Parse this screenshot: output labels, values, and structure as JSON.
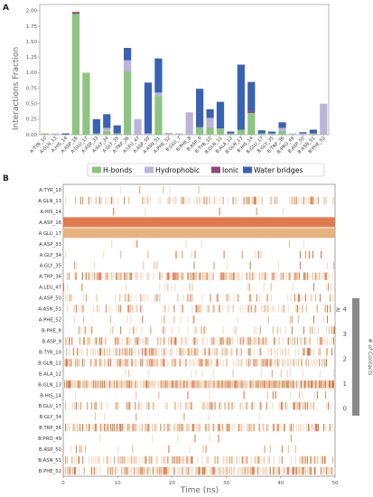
{
  "panel_a_label": "A",
  "panel_b_label": "B",
  "chart_data": [
    {
      "type": "bar",
      "stacked": true,
      "ylabel": "Interactions Fraction",
      "ylim": [
        0,
        2.1
      ],
      "yticks": [
        "0.00",
        "0.25",
        "0.50",
        "0.75",
        "1.00",
        "1.25",
        "1.50",
        "1.75",
        "2.00"
      ],
      "grid": false,
      "legend_position": "bottom",
      "categories": [
        "A:TYR_10",
        "A:GLN_13",
        "A:HIS_14",
        "A:ASP_16",
        "A:GLU_17",
        "A:ASP_33",
        "A:GLY_34",
        "A:GLY_35",
        "A:TRP_36",
        "A:LEU_47",
        "A:ASP_50",
        "A:ASN_51",
        "A:PHE_52",
        "B:GLU_7",
        "B:PHE_8",
        "B:ASP_9",
        "B:TYR_10",
        "B:GLN_11",
        "B:ALA_12",
        "B:GLN_13",
        "B:HIS_14",
        "B:GLU_17",
        "B:GLY_35",
        "B:TRP_36",
        "B:PRO_49",
        "B:ASP_50",
        "B:ASN_51",
        "B:PHE_52"
      ],
      "series": [
        {
          "name": "H-bonds",
          "color": "#8dc481",
          "values": [
            0.02,
            0.0,
            0.0,
            1.95,
            1.0,
            0.02,
            0.06,
            0.02,
            1.02,
            0.0,
            0.0,
            0.62,
            0.0,
            0.0,
            0.0,
            0.12,
            0.12,
            0.1,
            0.02,
            0.08,
            0.35,
            0.02,
            0.02,
            0.06,
            0.0,
            0.0,
            0.02,
            0.0
          ]
        },
        {
          "name": "Hydrophobic",
          "color": "#bbb3d9",
          "values": [
            0.0,
            0.02,
            0.0,
            0.0,
            0.0,
            0.0,
            0.05,
            0.0,
            0.18,
            0.25,
            0.02,
            0.06,
            0.03,
            0.02,
            0.36,
            0.0,
            0.15,
            0.0,
            0.0,
            0.0,
            0.0,
            0.0,
            0.0,
            0.05,
            0.02,
            0.02,
            0.0,
            0.5
          ]
        },
        {
          "name": "Ionic",
          "color": "#8c4a76",
          "values": [
            0.0,
            0.0,
            0.0,
            0.03,
            0.0,
            0.0,
            0.0,
            0.0,
            0.0,
            0.0,
            0.0,
            0.0,
            0.0,
            0.0,
            0.0,
            0.0,
            0.0,
            0.0,
            0.0,
            0.0,
            0.03,
            0.0,
            0.0,
            0.0,
            0.0,
            0.0,
            0.0,
            0.0
          ]
        },
        {
          "name": "Water bridges",
          "color": "#3a62b2",
          "values": [
            0.0,
            0.0,
            0.02,
            0.0,
            0.0,
            0.23,
            0.22,
            0.13,
            0.2,
            0.0,
            0.82,
            0.55,
            0.0,
            0.0,
            0.0,
            0.62,
            0.14,
            0.43,
            0.03,
            1.05,
            0.47,
            0.05,
            0.03,
            0.09,
            0.0,
            0.02,
            0.06,
            0.0
          ]
        }
      ]
    },
    {
      "type": "heatmap",
      "xlabel": "Time (ns)",
      "xlim": [
        0,
        50
      ],
      "xticks": [
        "0",
        "10",
        "20",
        "30",
        "40",
        "50"
      ],
      "rows": [
        "A:TYR_10",
        "A:GLN_13",
        "A:HIS_14",
        "A:ASP_16",
        "A:GLU_17",
        "A:ASP_33",
        "A:GLY_34",
        "A:GLY_35",
        "A:TRP_36",
        "A:LEU_47",
        "A:ASP_50",
        "A:ASN_51",
        "A:PHE_52",
        "B:PHE_8",
        "B:ASP_9",
        "B:TYR_10",
        "B:GLN_11",
        "B:ALA_12",
        "B:GLN_13",
        "B:HIS_14",
        "B:GLU_17",
        "B:GLY_34",
        "B:TRP_36",
        "B:PRO_49",
        "B:ASP_50",
        "B:ASN_51",
        "B:PHE_52"
      ],
      "row_density": [
        0.02,
        0.35,
        0.02,
        1.0,
        1.0,
        0.02,
        0.05,
        0.04,
        0.55,
        0.06,
        0.18,
        0.25,
        0.05,
        0.15,
        0.45,
        0.4,
        0.5,
        0.05,
        0.9,
        0.05,
        0.3,
        0.02,
        0.55,
        0.02,
        0.08,
        0.4,
        0.55
      ],
      "colorbar": {
        "title": "# of Contacts",
        "ticks": [
          "0",
          "1",
          "2",
          "3",
          "≥ 4"
        ]
      }
    }
  ]
}
